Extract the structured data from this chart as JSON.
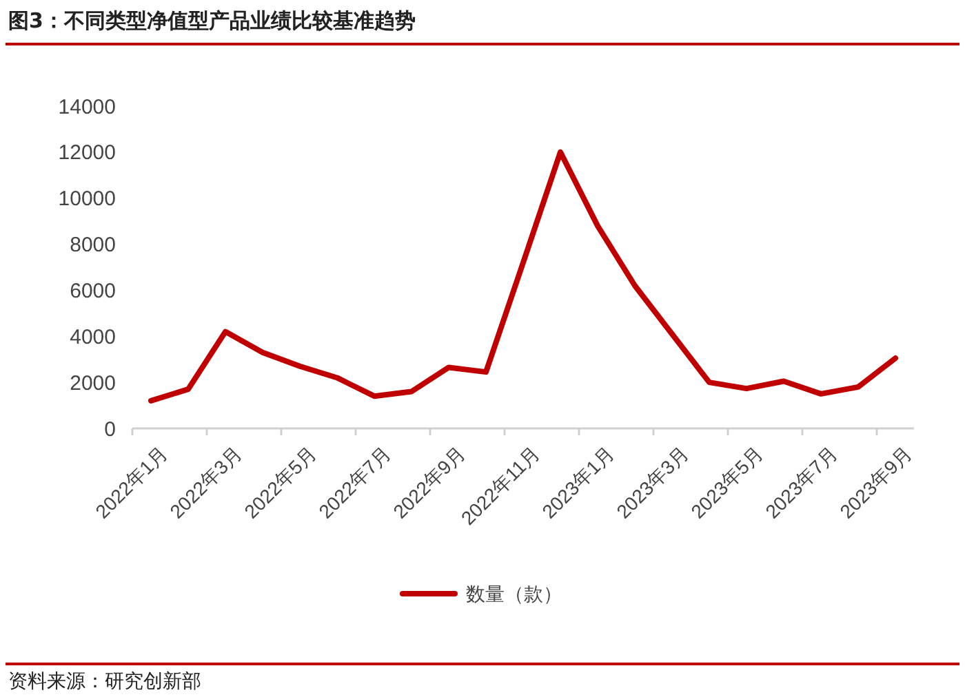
{
  "chart_data": {
    "type": "line",
    "title": "图3：不同类型净值型产品业绩比较基准趋势",
    "categories": [
      "2022年1月",
      null,
      "2022年3月",
      null,
      "2022年5月",
      null,
      "2022年7月",
      null,
      "2022年9月",
      null,
      "2022年11月",
      null,
      "2023年1月",
      null,
      "2023年3月",
      null,
      "2023年5月",
      null,
      "2023年7月",
      null,
      "2023年9月"
    ],
    "series": [
      {
        "name": "数量（款）",
        "color": "#c00000",
        "values": [
          1200,
          1700,
          4200,
          3300,
          2700,
          2200,
          1400,
          1600,
          2650,
          2450,
          7200,
          12000,
          8800,
          6200,
          4100,
          2000,
          1730,
          2050,
          1500,
          1800,
          3050
        ]
      }
    ],
    "ylim": [
      0,
      14000
    ],
    "yticks": [
      0,
      2000,
      4000,
      6000,
      8000,
      10000,
      12000,
      14000
    ],
    "grid": false,
    "legend": "bottom",
    "marker": "none",
    "line_style": "solid",
    "annotations": [
      "资料来源：研究创新部"
    ]
  }
}
